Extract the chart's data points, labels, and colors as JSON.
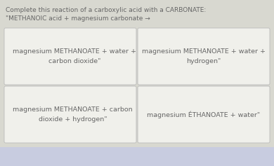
{
  "bg_color": "#d8d8d0",
  "card_bg": "#f0f0eb",
  "card_border": "#bbbbbb",
  "title_line1": "Complete this reaction of a carboxylic acid with a CARBONATE:",
  "title_line2": "\"METHANOIC acid + magnesium carbonate →",
  "title_fontsize": 6.5,
  "text_color": "#666666",
  "bottom_bg": "#c8cce0",
  "cards": [
    {
      "col": 0,
      "row": 0,
      "text": "magnesium METHANOATE + water +\ncarbon dioxide\""
    },
    {
      "col": 1,
      "row": 0,
      "text": "magnesium METHANOATE + water +\nhydrogen\""
    },
    {
      "col": 0,
      "row": 1,
      "text": "magnesium METHANOATE + carbon\ndioxide + hydrogen\""
    },
    {
      "col": 1,
      "row": 1,
      "text": "magnesium ÉTHANOATE + water\""
    }
  ],
  "card_text_fontsize": 6.8
}
